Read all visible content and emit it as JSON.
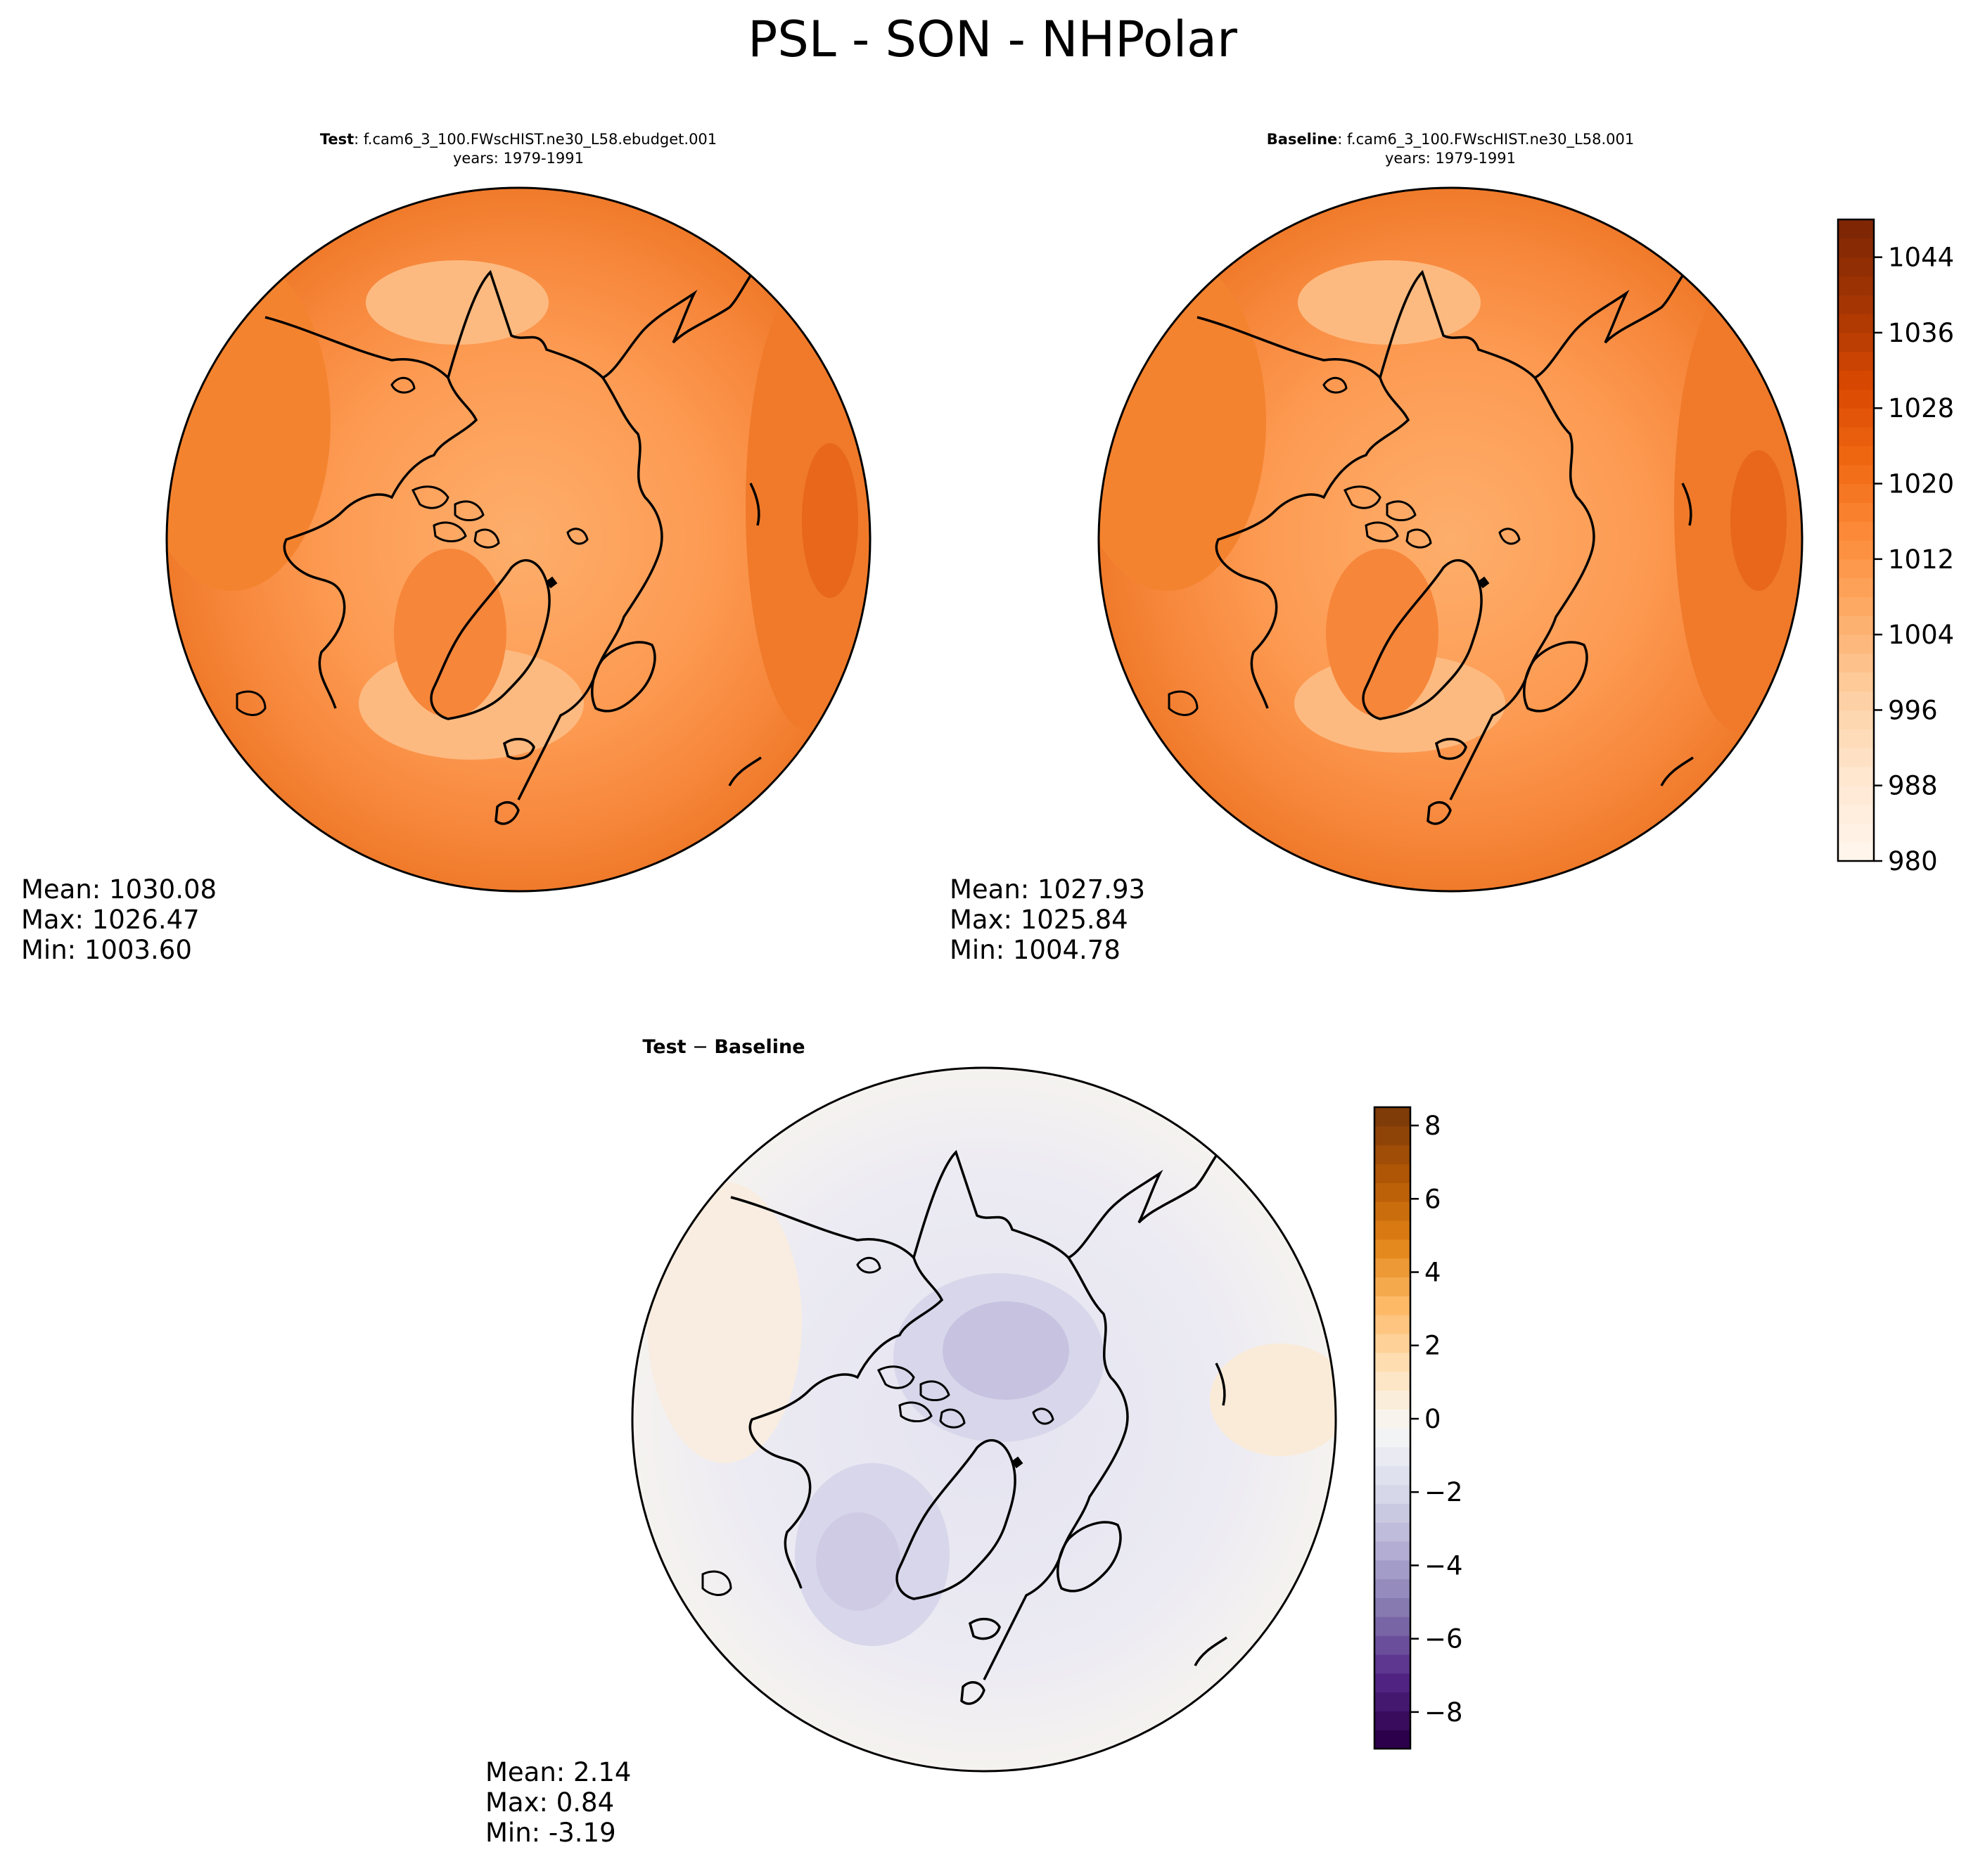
{
  "figure_title": "PSL - SON - NHPolar",
  "colors": {
    "orange_scale": [
      "#fff5eb",
      "#fee6ce",
      "#fdd0a2",
      "#fdae6b",
      "#fd8d3c",
      "#f16913",
      "#d94801",
      "#a63603",
      "#7f2704"
    ],
    "diverging_scale": [
      "#2d004b",
      "#542788",
      "#8073ac",
      "#b2abd2",
      "#d8daeb",
      "#f7f7f7",
      "#fee0b6",
      "#fdb863",
      "#e08214",
      "#b35806",
      "#7f3b08"
    ]
  },
  "panels": {
    "test": {
      "label": "Test",
      "case": ": f.cam6_3_100.FWscHIST.ne30_L58.ebudget.001",
      "years": "years: 1979-1991",
      "stats": {
        "mean": "Mean: 1030.08",
        "max": "Max: 1026.47",
        "min": "Min: 1003.60"
      }
    },
    "baseline": {
      "label": "Baseline",
      "case": ": f.cam6_3_100.FWscHIST.ne30_L58.001",
      "years": "years: 1979-1991",
      "stats": {
        "mean": "Mean: 1027.93",
        "max": "Max: 1025.84",
        "min": "Min: 1004.78"
      }
    },
    "diff": {
      "label_a": "Test",
      "minus": " − ",
      "label_b": "Baseline",
      "stats": {
        "mean": "Mean:  2.14",
        "max": "Max:  0.84",
        "min": "Min: -3.19"
      }
    }
  },
  "chart_data": [
    {
      "type": "heatmap",
      "name": "Test",
      "projection": "north-polar-stereographic",
      "variable": "PSL",
      "season": "SON",
      "levels": [
        980,
        1048
      ],
      "mean": 1030.08,
      "max": 1026.47,
      "min": 1003.6
    },
    {
      "type": "heatmap",
      "name": "Baseline",
      "projection": "north-polar-stereographic",
      "variable": "PSL",
      "season": "SON",
      "levels": [
        980,
        1048
      ],
      "mean": 1027.93,
      "max": 1025.84,
      "min": 1004.78
    },
    {
      "type": "heatmap",
      "name": "Test - Baseline",
      "projection": "north-polar-stereographic",
      "levels": [
        -9,
        8.5
      ],
      "mean": 2.14,
      "max": 0.84,
      "min": -3.19
    }
  ],
  "colorbars": {
    "main": {
      "range": [
        980,
        1048
      ],
      "ticks": [
        980,
        988,
        996,
        1004,
        1012,
        1020,
        1028,
        1036,
        1044
      ],
      "tick_labels": [
        "980",
        "988",
        "996",
        "1004",
        "1012",
        "1020",
        "1028",
        "1036",
        "1044"
      ]
    },
    "diff": {
      "range": [
        -9,
        8.5
      ],
      "ticks": [
        -8,
        -6,
        -4,
        -2,
        0,
        2,
        4,
        6,
        8
      ],
      "tick_labels": [
        "−8",
        "−6",
        "−4",
        "−2",
        "0",
        "2",
        "4",
        "6",
        "8"
      ]
    }
  }
}
